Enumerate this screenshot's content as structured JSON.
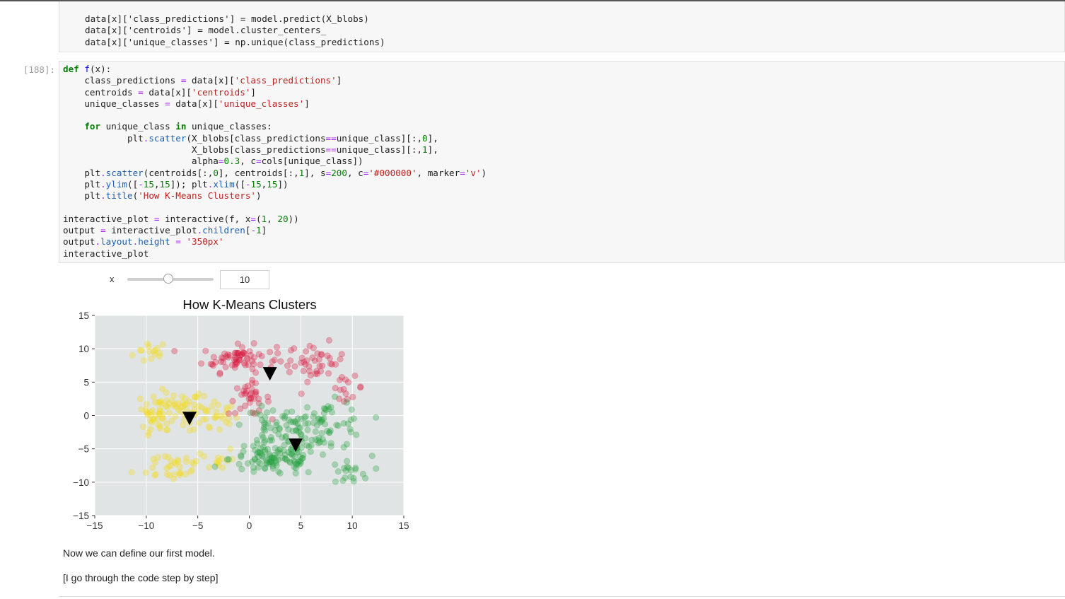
{
  "notebook": {
    "prev_cell_lines": [
      "data[x]['class_predictions'] = model.predict(X_blobs)",
      "data[x]['centroids'] = model.cluster_centers_",
      "data[x]['unique_classes'] = np.unique(class_predictions)"
    ],
    "cell_prompt": "[188]:",
    "widget": {
      "label": "x",
      "value": "10",
      "min": 1,
      "max": 20
    },
    "markdown": {
      "line1": "Now we can define our first model.",
      "line2": "[I go through the code step by step]"
    }
  },
  "colors": {
    "cluster_yellow": "#f5d90a",
    "cluster_red": "#dc143c",
    "cluster_green": "#22a03c",
    "centroid": "#000000",
    "axes_bg": "#e0e4e4"
  },
  "chart_data": {
    "type": "scatter",
    "title": "How K-Means Clusters",
    "xlim": [
      -15,
      15
    ],
    "ylim": [
      -15,
      15
    ],
    "xticks": [
      "−15",
      "−10",
      "−5",
      "0",
      "5",
      "10",
      "15"
    ],
    "yticks": [
      "15",
      "10",
      "5",
      "0",
      "−5",
      "−10",
      "−15"
    ],
    "grid": true,
    "centroids": [
      {
        "x": -5.8,
        "y": -0.4
      },
      {
        "x": 2.0,
        "y": 6.3
      },
      {
        "x": 4.5,
        "y": -4.4
      }
    ],
    "clusters": [
      {
        "color": "#f5d90a",
        "regions": [
          {
            "x": -9.5,
            "y": 9.5,
            "sx": 0.9,
            "sy": 0.9,
            "n": 15
          },
          {
            "x": -7.5,
            "y": 1.0,
            "sx": 1.5,
            "sy": 1.2,
            "n": 60
          },
          {
            "x": -9.5,
            "y": -1.5,
            "sx": 0.7,
            "sy": 1.2,
            "n": 15
          },
          {
            "x": -3.5,
            "y": 0.0,
            "sx": 1.2,
            "sy": 1.5,
            "n": 35
          },
          {
            "x": -7.5,
            "y": -7.5,
            "sx": 1.8,
            "sy": 1.2,
            "n": 35
          },
          {
            "x": -3.0,
            "y": -6.5,
            "sx": 0.8,
            "sy": 1.0,
            "n": 12
          }
        ]
      },
      {
        "color": "#dc143c",
        "regions": [
          {
            "x": -1.0,
            "y": 8.5,
            "sx": 1.8,
            "sy": 1.0,
            "n": 70
          },
          {
            "x": 6.5,
            "y": 8.0,
            "sx": 1.4,
            "sy": 1.4,
            "n": 40
          },
          {
            "x": 9.5,
            "y": 4.2,
            "sx": 0.8,
            "sy": 0.8,
            "n": 15
          },
          {
            "x": 0.0,
            "y": 2.5,
            "sx": 1.0,
            "sy": 1.2,
            "n": 35
          }
        ]
      },
      {
        "color": "#22a03c",
        "regions": [
          {
            "x": 2.5,
            "y": -6.5,
            "sx": 2.2,
            "sy": 1.3,
            "n": 110
          },
          {
            "x": 7.0,
            "y": -1.5,
            "sx": 2.2,
            "sy": 1.8,
            "n": 80
          },
          {
            "x": 2.5,
            "y": -1.5,
            "sx": 1.5,
            "sy": 1.3,
            "n": 40
          },
          {
            "x": 9.5,
            "y": -8.5,
            "sx": 1.2,
            "sy": 1.2,
            "n": 20
          }
        ]
      }
    ]
  }
}
